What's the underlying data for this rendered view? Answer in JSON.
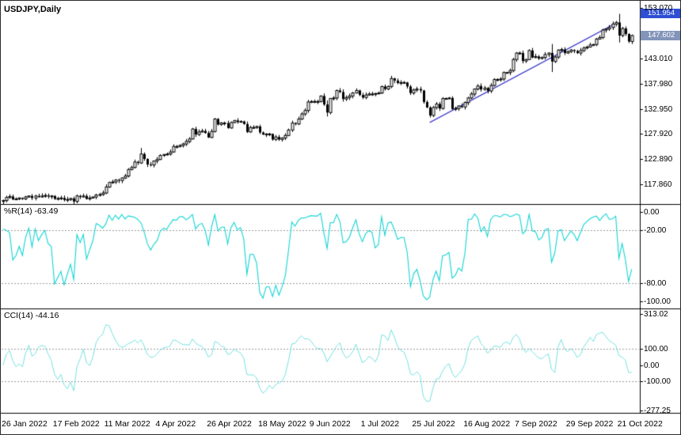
{
  "window": {
    "symbol_label": "USDJPY,Daily"
  },
  "indicators": {
    "wpr_label": "%R(14) -63.49",
    "cci_label": "CCI(14) -44.16"
  },
  "badges": {
    "marker": "151.954",
    "current": "147.602"
  },
  "axes": {
    "price_ticks": [
      "153.070",
      "143.010",
      "137.980",
      "132.950",
      "127.920",
      "122.890",
      "117.860"
    ],
    "wpr_ticks": [
      "0.00",
      "-20.00",
      "-80.00",
      "-100.00"
    ],
    "cci_ticks": [
      "313.02",
      "100.00",
      "0.00",
      "-100.00",
      "-277.25"
    ],
    "date_labels": [
      "26 Jan 2022",
      "17 Feb 2022",
      "11 Mar 2022",
      "4 Apr 2022",
      "26 Apr 2022",
      "18 May 2022",
      "9 Jun 2022",
      "1 Jul 2022",
      "25 Jul 2022",
      "16 Aug 2022",
      "7 Sep 2022",
      "29 Sep 2022",
      "21 Oct 2022"
    ]
  },
  "chart_data": {
    "type": "candlestick",
    "symbol": "USDJPY",
    "timeframe": "Daily",
    "x_start_label": "26 Jan 2022",
    "x_end_label": "21 Oct 2022",
    "label_every": 16,
    "price_range": [
      153.6,
      114.2
    ],
    "current_price": 147.602,
    "marker_price": 151.954,
    "closes": [
      114.6,
      115.2,
      115.4,
      114.8,
      114.9,
      115.1,
      114.9,
      115.3,
      115.5,
      115.1,
      115.5,
      115.3,
      115.5,
      115.6,
      115.4,
      115.5,
      114.9,
      115.0,
      115.1,
      114.7,
      114.8,
      115.0,
      114.4,
      115.5,
      115.3,
      115.5,
      114.9,
      115.1,
      115.3,
      115.7,
      115.8,
      116.1,
      117.3,
      118.2,
      118.3,
      118.7,
      118.6,
      119.1,
      119.5,
      120.8,
      121.2,
      122.3,
      122.1,
      123.9,
      122.9,
      121.8,
      121.7,
      122.5,
      122.8,
      123.6,
      123.8,
      123.9,
      124.3,
      125.4,
      125.4,
      125.6,
      125.9,
      126.4,
      126.9,
      128.9,
      127.8,
      128.3,
      128.5,
      128.1,
      127.2,
      128.4,
      130.9,
      129.8,
      130.1,
      130.1,
      129.1,
      130.2,
      130.6,
      130.3,
      130.4,
      129.9,
      128.3,
      129.2,
      129.2,
      129.4,
      128.2,
      127.8,
      127.9,
      127.9,
      126.8,
      127.3,
      126.8,
      127.1,
      127.6,
      128.7,
      130.1,
      129.9,
      130.9,
      131.9,
      132.6,
      134.3,
      134.4,
      134.4,
      134.4,
      135.5,
      133.8,
      132.2,
      135.0,
      135.1,
      136.6,
      136.3,
      134.9,
      135.2,
      135.5,
      136.1,
      136.6,
      135.7,
      135.2,
      135.7,
      135.9,
      135.9,
      136.0,
      136.1,
      137.4,
      136.9,
      137.4,
      139.0,
      138.6,
      138.1,
      138.2,
      138.2,
      137.4,
      136.1,
      136.7,
      136.9,
      136.6,
      134.3,
      133.2,
      131.6,
      133.2,
      133.9,
      133.0,
      135.0,
      135.0,
      135.1,
      132.9,
      133.0,
      133.5,
      133.3,
      134.2,
      135.1,
      135.9,
      136.9,
      137.5,
      136.8,
      137.1,
      136.5,
      137.6,
      138.8,
      138.8,
      138.9,
      140.2,
      140.2,
      140.6,
      142.8,
      144.1,
      144.1,
      142.5,
      142.8,
      144.6,
      143.2,
      143.4,
      143.0,
      143.2,
      143.8,
      144.1,
      142.4,
      143.3,
      144.7,
      144.8,
      144.1,
      144.4,
      144.7,
      144.5,
      144.1,
      144.6,
      145.1,
      145.3,
      145.7,
      145.8,
      146.9,
      147.2,
      148.7,
      148.9,
      149.2,
      149.9,
      150.2,
      147.6,
      149.0,
      147.9,
      146.4,
      147.6
    ],
    "wick_overrides": {
      "43": [
        125.1,
        121.9
      ],
      "101": [
        134.6,
        131.4
      ],
      "171": [
        145.9,
        140.3
      ],
      "192": [
        151.94,
        146.2
      ]
    },
    "trendline": {
      "from_index": 133,
      "from_price": 130.2,
      "to_index": 190,
      "to_price": 149.7,
      "color": "#4040cc"
    },
    "wpr": {
      "period": 14,
      "last_value": -63.49,
      "levels": [
        -20,
        -80
      ],
      "range": [
        0,
        -100
      ]
    },
    "cci": {
      "period": 14,
      "last_value": -44.16,
      "levels": [
        100,
        -100
      ],
      "range": [
        313.02,
        -277.25
      ]
    },
    "colors": {
      "candle": "#000000",
      "bull_body": "#ffffff",
      "bear_body": "#000000",
      "wpr_line": "#12d4d4",
      "cci_line": "#76e0e0",
      "level_line": "#9a9a9a",
      "badge_marker": "#2e4fd4",
      "badge_price": "#8394ba"
    }
  }
}
